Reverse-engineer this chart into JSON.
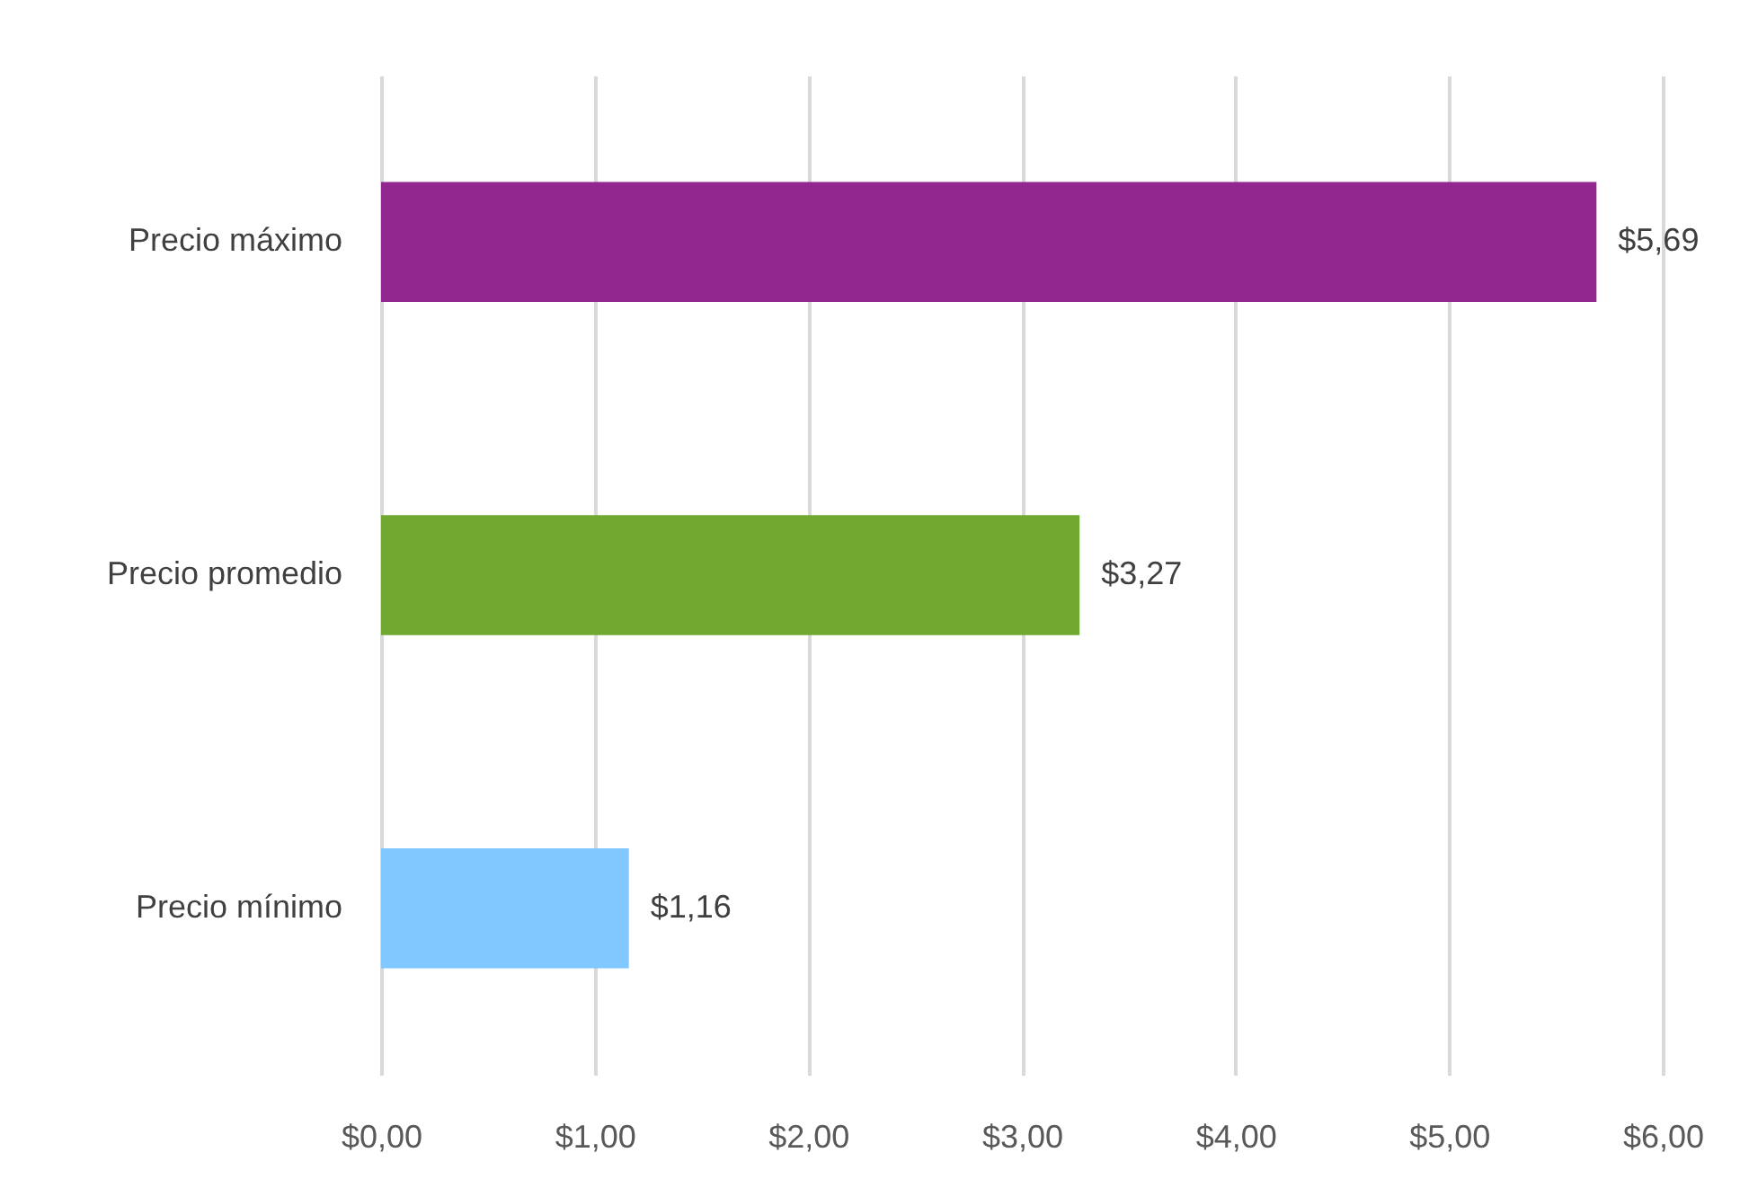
{
  "chart_data": {
    "type": "bar",
    "orientation": "horizontal",
    "categories": [
      "Precio máximo",
      "Precio promedio",
      "Precio mínimo"
    ],
    "values": [
      5.69,
      3.27,
      1.16
    ],
    "colors": [
      "#92278f",
      "#70a830",
      "#80c8ff"
    ],
    "value_labels": [
      "$5,69",
      "$3,27",
      "$1,16"
    ],
    "xlim": [
      0,
      6
    ],
    "xticks": [
      {
        "value": 0,
        "label": "$0,00"
      },
      {
        "value": 1,
        "label": "$1,00"
      },
      {
        "value": 2,
        "label": "$2,00"
      },
      {
        "value": 3,
        "label": "$3,00"
      },
      {
        "value": 4,
        "label": "$4,00"
      },
      {
        "value": 5,
        "label": "$5,00"
      },
      {
        "value": 6,
        "label": "$6,00"
      }
    ],
    "grid": "x"
  }
}
